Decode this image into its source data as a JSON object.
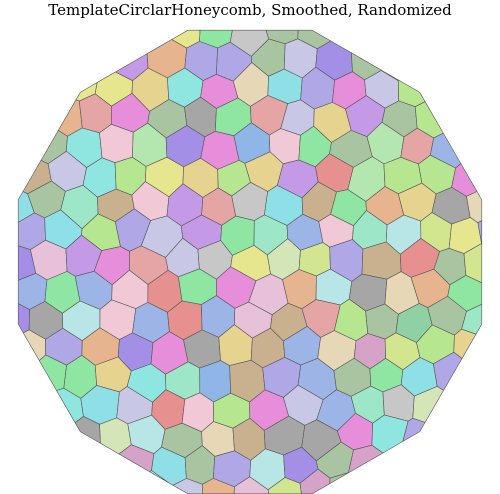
{
  "figure": {
    "title": "TemplateCirclarHoneycomb, Smoothed, Randomized",
    "cell_count": 177,
    "palette": [
      "#b7e690",
      "#e68ed9",
      "#8fe0e6",
      "#e6d38f",
      "#a38fe6",
      "#8fe6a2",
      "#e69090",
      "#c7c7c7",
      "#b0a8e6",
      "#e6b48f",
      "#8fb6e6",
      "#d1e68f",
      "#9ee6c8",
      "#e6c1d9",
      "#c49ae6",
      "#8fe6e0",
      "#e6e68f",
      "#a9c4a0",
      "#d5a3c8",
      "#9db5e6",
      "#e6a5a5",
      "#b4e6b0",
      "#c9b08f",
      "#a6a6a6",
      "#8fd1a5",
      "#f0c8d6",
      "#c8c8e6",
      "#e6d8b7",
      "#b8e6e6",
      "#d4e6b8"
    ],
    "stroke_color": "#555555"
  }
}
